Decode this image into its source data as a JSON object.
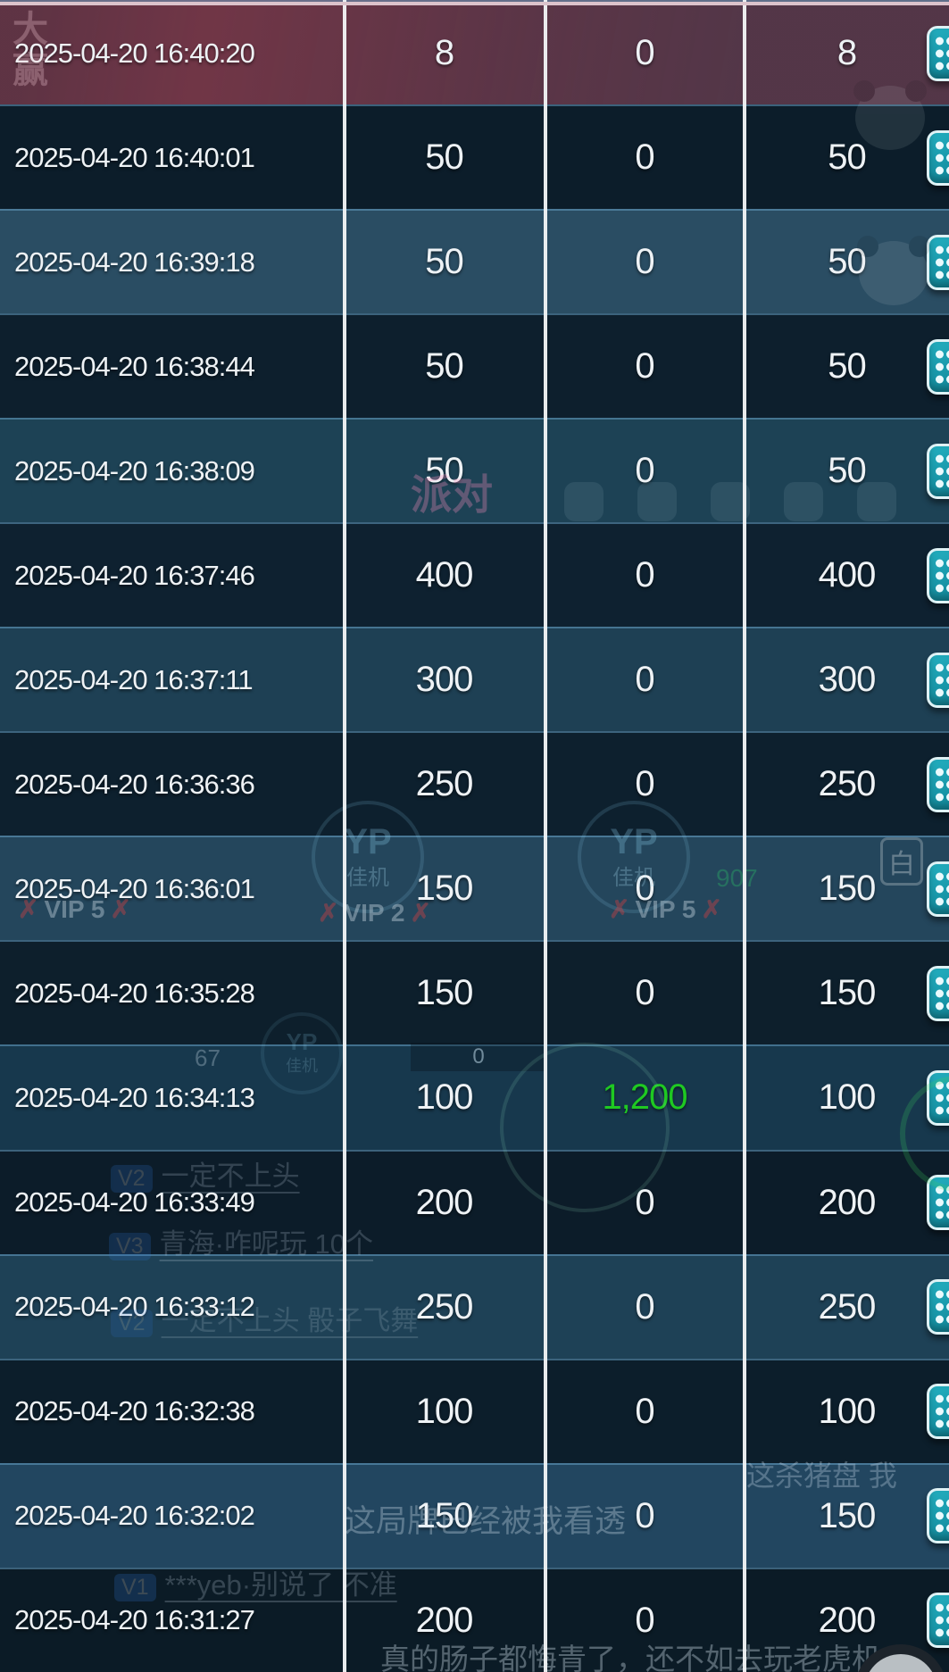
{
  "table": {
    "rows": [
      {
        "time": "2025-04-20 16:40:20",
        "v1": "8",
        "v2": "0",
        "v3": "8",
        "bg": "#503747",
        "tone": "red"
      },
      {
        "time": "2025-04-20 16:40:01",
        "v1": "50",
        "v2": "0",
        "v3": "50",
        "bg": "#0c1d2a"
      },
      {
        "time": "2025-04-20 16:39:18",
        "v1": "50",
        "v2": "0",
        "v3": "50",
        "bg": "#2a4d63"
      },
      {
        "time": "2025-04-20 16:38:44",
        "v1": "50",
        "v2": "0",
        "v3": "50",
        "bg": "#0d1f2d"
      },
      {
        "time": "2025-04-20 16:38:09",
        "v1": "50",
        "v2": "0",
        "v3": "50",
        "bg": "#1d4255"
      },
      {
        "time": "2025-04-20 16:37:46",
        "v1": "400",
        "v2": "0",
        "v3": "400",
        "bg": "#0e2130"
      },
      {
        "time": "2025-04-20 16:37:11",
        "v1": "300",
        "v2": "0",
        "v3": "300",
        "bg": "#1e4054"
      },
      {
        "time": "2025-04-20 16:36:36",
        "v1": "250",
        "v2": "0",
        "v3": "250",
        "bg": "#0d202e"
      },
      {
        "time": "2025-04-20 16:36:01",
        "v1": "150",
        "v2": "0",
        "v3": "150",
        "bg": "#24465c"
      },
      {
        "time": "2025-04-20 16:35:28",
        "v1": "150",
        "v2": "0",
        "v3": "150",
        "bg": "#0d1f2c"
      },
      {
        "time": "2025-04-20 16:34:13",
        "v1": "100",
        "v2": "1,200",
        "v3": "100",
        "bg": "#17384d",
        "v2_highlight": true
      },
      {
        "time": "2025-04-20 16:33:49",
        "v1": "200",
        "v2": "0",
        "v3": "200",
        "bg": "#0c1c29"
      },
      {
        "time": "2025-04-20 16:33:12",
        "v1": "250",
        "v2": "0",
        "v3": "250",
        "bg": "#1e4156"
      },
      {
        "time": "2025-04-20 16:32:38",
        "v1": "100",
        "v2": "0",
        "v3": "100",
        "bg": "#0c1e2b"
      },
      {
        "time": "2025-04-20 16:32:02",
        "v1": "150",
        "v2": "0",
        "v3": "150",
        "bg": "#224660"
      },
      {
        "time": "2025-04-20 16:31:27",
        "v1": "200",
        "v2": "0",
        "v3": "200",
        "bg": "#0b1b26"
      }
    ]
  },
  "colors": {
    "win_green": "#1fc922",
    "action_button_teal": "#1795a7",
    "divider_white": "#f3f5f7",
    "highlight_row_red": "#503747",
    "highlight_top_line": "#dcc3cb"
  },
  "decor": {
    "banner_vertical": "大赢",
    "party": "派对",
    "yp_badge": {
      "title": "YP",
      "subtitle": "佳机"
    },
    "vip_tags": [
      "VIP 5",
      "VIP 2",
      "VIP 5"
    ],
    "cross_mark": "✗",
    "green_number": "907",
    "white_badge": "白",
    "counter": "67",
    "bar_value": "0",
    "chat_lines": [
      {
        "badge": "V2",
        "text": "一定不上头"
      },
      {
        "badge": "V3",
        "text": "青海·咋呢玩 10个"
      },
      {
        "badge": "V2",
        "text": "一定不上头 骰子飞舞"
      },
      {
        "badge": "V1",
        "text": "***yeb·别说了 不准"
      }
    ],
    "floating_texts": [
      "这杀猪盘 我",
      "这局牌已经被我看透",
      "真的肠子都悔青了，还不如去玩老虎机"
    ]
  }
}
